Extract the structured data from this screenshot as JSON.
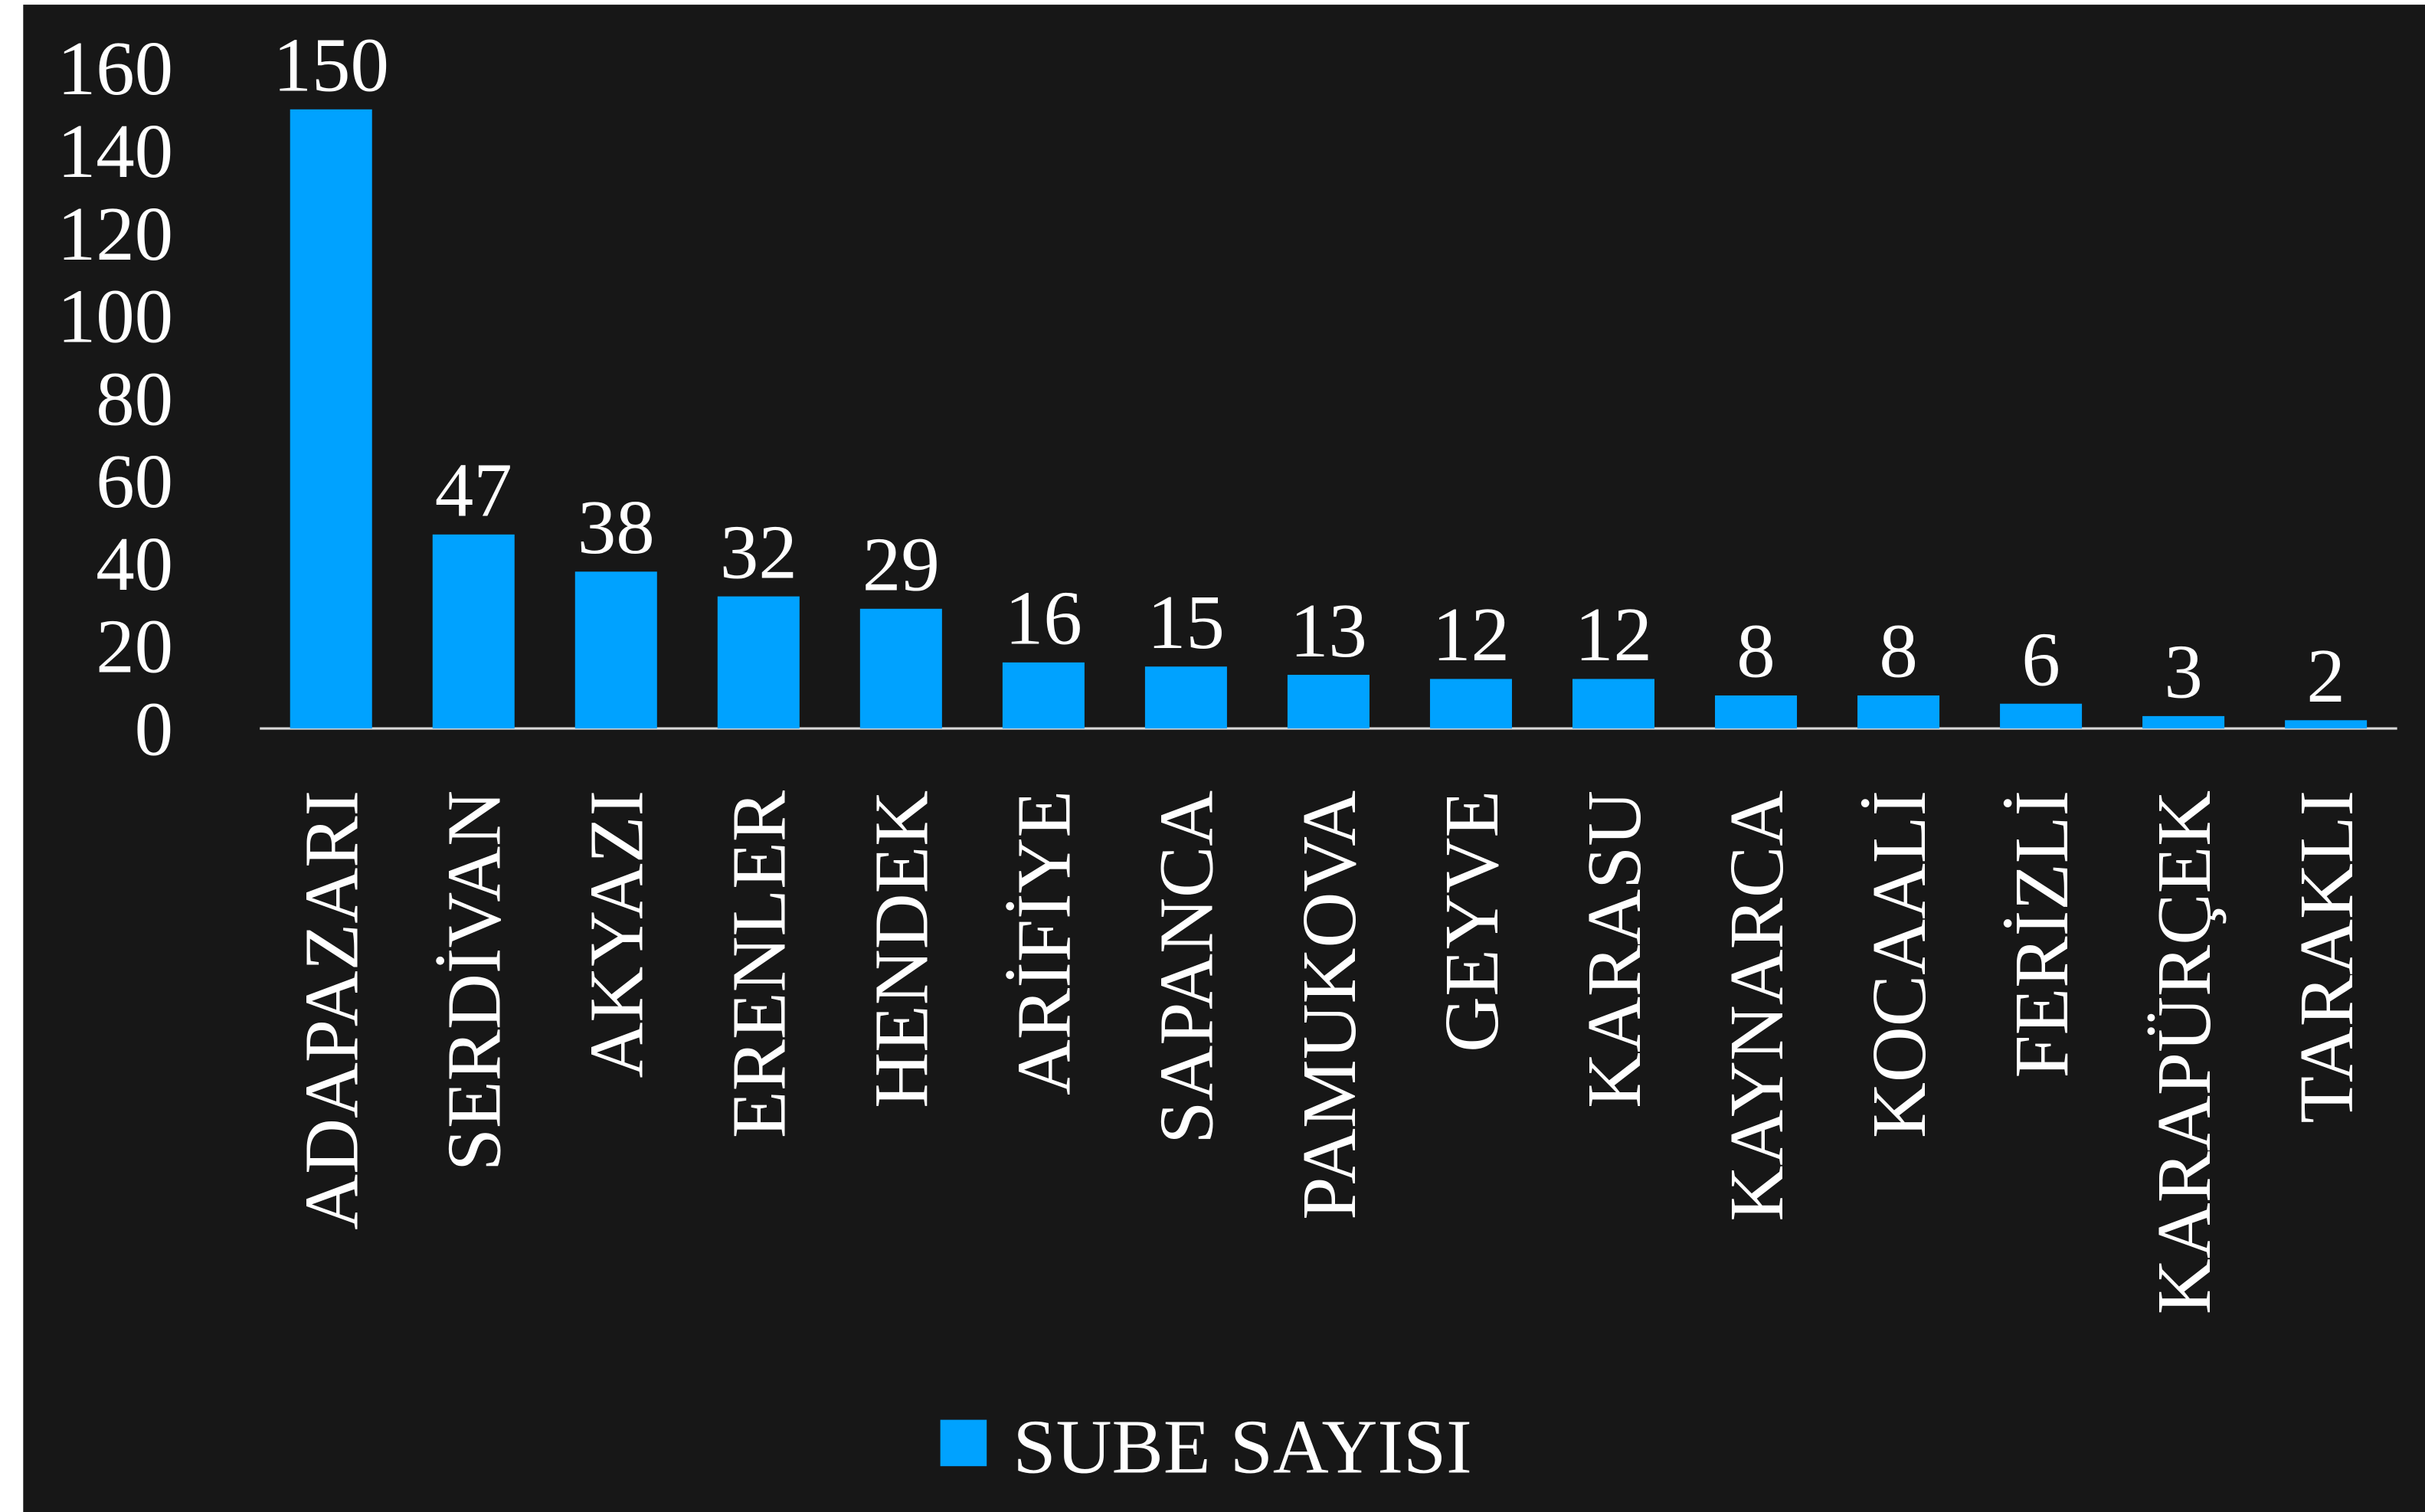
{
  "chart_data": {
    "type": "bar",
    "categories": [
      "ADAPAZARI",
      "SERDİVAN",
      "AKYAZI",
      "ERENLER",
      "HENDEK",
      "ARİFİYE",
      "SAPANCA",
      "PAMUKOVA",
      "GEYVE",
      "KARASU",
      "KAYNARCA",
      "KOCAALİ",
      "FERİZLİ",
      "KARAPÜRÇEK",
      "TARAKLI"
    ],
    "series": [
      {
        "name": "SUBE SAYISI",
        "color": "#00a2ff",
        "values": [
          150,
          47,
          38,
          32,
          29,
          16,
          15,
          13,
          12,
          12,
          8,
          8,
          6,
          3,
          2
        ]
      }
    ],
    "ylim": [
      0,
      160
    ],
    "yticks": [
      0,
      20,
      40,
      60,
      80,
      100,
      120,
      140,
      160
    ],
    "grid": false,
    "legend": "bottom"
  }
}
